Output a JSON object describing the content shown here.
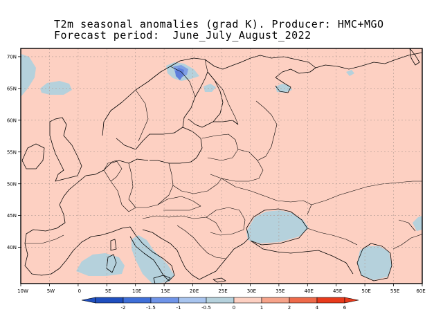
{
  "title": {
    "line1": "T2m seasonal anomalies (grad K). Producer: HMC+MGO",
    "line2": "Forecast period:  June_July_August_2022"
  },
  "map": {
    "region": "Europe",
    "projection": "lat-lon",
    "lon_range": [
      -10,
      60
    ],
    "lat_range": [
      35,
      72
    ],
    "background_color": "#fdd0c2",
    "grid": true
  },
  "axes": {
    "lon_ticks": [
      "10W",
      "5W",
      "0",
      "5E",
      "10E",
      "15E",
      "20E",
      "25E",
      "30E",
      "35E",
      "40E",
      "45E",
      "50E",
      "55E",
      "60E"
    ],
    "lat_ticks": [
      "70N",
      "65N",
      "60N",
      "55N",
      "50N",
      "45N",
      "40N"
    ]
  },
  "colorbar": {
    "labels": [
      "-2",
      "-1.5",
      "-1",
      "-0.5",
      "0",
      "1",
      "2",
      "4",
      "6"
    ],
    "colors": [
      "#1f4fbf",
      "#3f6fd8",
      "#6f94e8",
      "#a8c4ee",
      "#b5d1dc",
      "#fdd0c2",
      "#f6a38a",
      "#ee6a4a",
      "#e83a1c",
      "#e83a1c"
    ]
  },
  "anomaly_colors": {
    "weak_negative": "#b5d1dc",
    "moderate_negative": "#7f9fe4",
    "strong_negative": "#5f7fdb"
  }
}
